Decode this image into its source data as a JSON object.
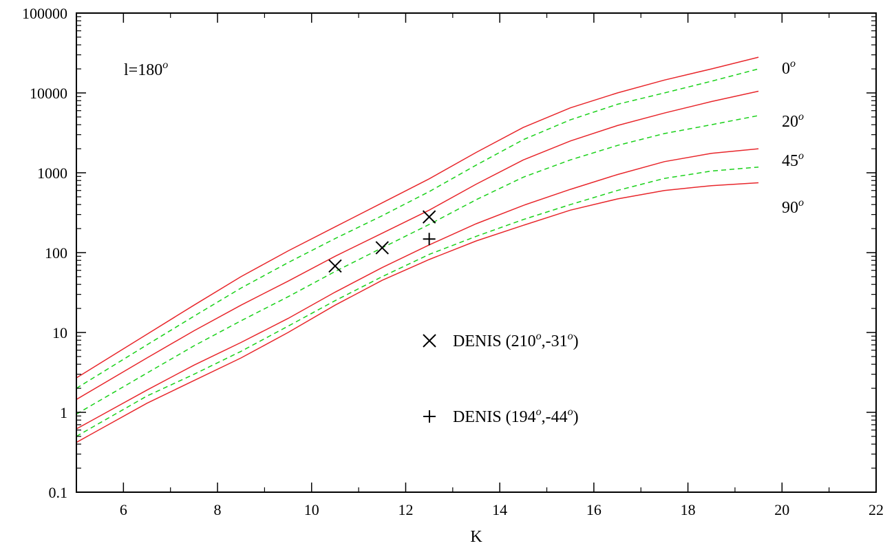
{
  "chart_data": {
    "type": "line",
    "title": "",
    "xlabel": "K",
    "ylabel": "",
    "xlim": [
      5,
      22
    ],
    "ylim": [
      0.1,
      100000
    ],
    "yscale": "log",
    "xticks": [
      6,
      8,
      10,
      12,
      14,
      16,
      18,
      20,
      22
    ],
    "xtick_labels": [
      "6",
      "8",
      "10",
      "12",
      "14",
      "16",
      "18",
      "20",
      "22"
    ],
    "yticks": [
      0.1,
      1,
      10,
      100,
      1000,
      10000,
      100000
    ],
    "ytick_labels": [
      "0.1",
      "1",
      "10",
      "100",
      "1000",
      "10000",
      "100000"
    ],
    "grid": false,
    "annotation": {
      "base": "l=180",
      "sup": "o"
    },
    "curve_labels": [
      {
        "base": "0",
        "sup": "o"
      },
      {
        "base": "20",
        "sup": "o"
      },
      {
        "base": "45",
        "sup": "o"
      },
      {
        "base": "90",
        "sup": "o"
      }
    ],
    "colors": {
      "solid": "#e8262b",
      "dashed": "#19d119",
      "marker": "#000000"
    },
    "x": [
      5,
      6.5,
      7.5,
      8.5,
      9.5,
      10.5,
      11.5,
      12.5,
      13.5,
      14.5,
      15.5,
      16.5,
      17.5,
      18.5,
      19.5
    ],
    "series": [
      {
        "style": "solid",
        "values": [
          2.7,
          9.5,
          22,
          50,
          105,
          210,
          420,
          840,
          1800,
          3700,
          6500,
          10000,
          14500,
          20000,
          28000
        ]
      },
      {
        "style": "dashed",
        "values": [
          2.0,
          7.0,
          16,
          36,
          75,
          150,
          290,
          580,
          1250,
          2600,
          4600,
          7200,
          10000,
          14000,
          20000
        ]
      },
      {
        "style": "solid",
        "values": [
          1.45,
          4.8,
          10.5,
          22,
          44,
          90,
          175,
          340,
          720,
          1450,
          2500,
          3900,
          5600,
          7800,
          10500
        ]
      },
      {
        "style": "dashed",
        "values": [
          0.95,
          3.1,
          6.8,
          14,
          28,
          58,
          115,
          225,
          460,
          880,
          1450,
          2200,
          3100,
          4000,
          5200
        ]
      },
      {
        "style": "solid",
        "values": [
          0.62,
          1.9,
          3.9,
          7.5,
          15,
          32,
          65,
          125,
          230,
          390,
          620,
          950,
          1380,
          1750,
          2000
        ]
      },
      {
        "style": "dashed",
        "values": [
          0.5,
          1.6,
          3.0,
          5.8,
          12,
          25,
          50,
          95,
          160,
          260,
          400,
          600,
          850,
          1050,
          1180
        ]
      },
      {
        "style": "solid",
        "values": [
          0.42,
          1.3,
          2.5,
          4.8,
          10,
          22,
          45,
          82,
          140,
          220,
          340,
          470,
          600,
          690,
          750
        ]
      }
    ],
    "points": [
      {
        "marker": "x",
        "x": 10.5,
        "y": 68
      },
      {
        "marker": "x",
        "x": 11.5,
        "y": 115
      },
      {
        "marker": "x",
        "x": 12.5,
        "y": 280
      },
      {
        "marker": "+",
        "x": 12.5,
        "y": 148
      }
    ],
    "legend": [
      {
        "marker": "x",
        "label": "DENIS (210",
        "sup1": "o",
        "mid": ",-31",
        "sup2": "o",
        "end": ")"
      },
      {
        "marker": "+",
        "label": "DENIS (194",
        "sup1": "o",
        "mid": ",-44",
        "sup2": "o",
        "end": ")"
      }
    ]
  }
}
